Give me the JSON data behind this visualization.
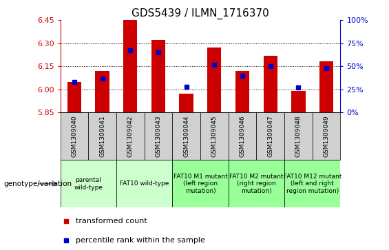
{
  "title": "GDS5439 / ILMN_1716370",
  "samples": [
    "GSM1309040",
    "GSM1309041",
    "GSM1309042",
    "GSM1309043",
    "GSM1309044",
    "GSM1309045",
    "GSM1309046",
    "GSM1309047",
    "GSM1309048",
    "GSM1309049"
  ],
  "bar_values": [
    6.05,
    6.12,
    6.45,
    6.32,
    5.97,
    6.27,
    6.12,
    6.22,
    5.99,
    6.18
  ],
  "percentile_values": [
    33,
    37,
    67,
    65,
    28,
    52,
    40,
    50,
    27,
    48
  ],
  "ylim_left": [
    5.85,
    6.45
  ],
  "ylim_right": [
    0,
    100
  ],
  "yticks_left": [
    5.85,
    6.0,
    6.15,
    6.3,
    6.45
  ],
  "yticks_right": [
    0,
    25,
    50,
    75,
    100
  ],
  "ytick_labels_right": [
    "0%",
    "25%",
    "50%",
    "75%",
    "100%"
  ],
  "bar_color": "#cc0000",
  "dot_color": "#0000cc",
  "grid_color": "#000000",
  "bar_bottom": 5.85,
  "genotype_groups": [
    {
      "label": "parental\nwild-type",
      "start": 0,
      "end": 2,
      "color": "#ccffcc"
    },
    {
      "label": "FAT10 wild-type",
      "start": 2,
      "end": 4,
      "color": "#ccffcc"
    },
    {
      "label": "FAT10 M1 mutant\n(left region\nmutation)",
      "start": 4,
      "end": 6,
      "color": "#99ff99"
    },
    {
      "label": "FAT10 M2 mutant\n(right region\nmutation)",
      "start": 6,
      "end": 8,
      "color": "#99ff99"
    },
    {
      "label": "FAT10 M12 mutant\n(left and right\nregion mutation)",
      "start": 8,
      "end": 10,
      "color": "#99ff99"
    }
  ],
  "legend_red_label": "transformed count",
  "legend_blue_label": "percentile rank within the sample",
  "genotype_label": "genotype/variation",
  "bar_color_hex": "#cc0000",
  "dot_color_hex": "#0000cc",
  "xlabel_color": "#cc0000",
  "right_axis_color": "#0000cc",
  "sample_bg_color": "#d0d0d0",
  "title_fontsize": 11,
  "tick_label_fontsize": 8,
  "sample_fontsize": 6.5,
  "geno_fontsize": 6.5,
  "legend_fontsize": 8
}
